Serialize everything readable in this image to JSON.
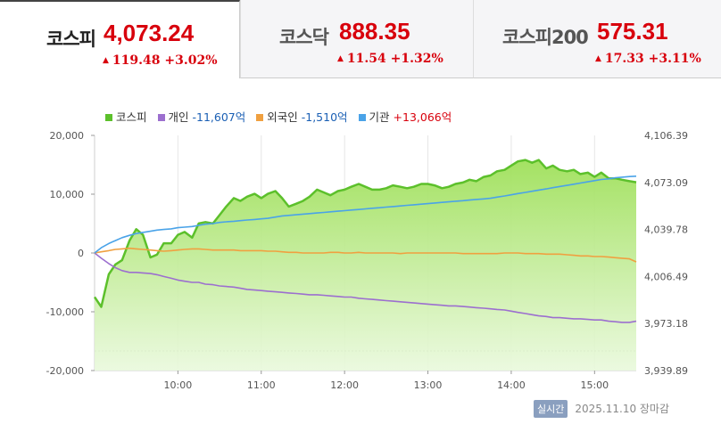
{
  "tabs": [
    {
      "name": "코스피",
      "value": "4,073.24",
      "change": "119.48 +3.02%",
      "active": true
    },
    {
      "name": "코스닥",
      "value": "888.35",
      "change": "11.54 +1.32%",
      "active": false
    },
    {
      "name": "코스피200",
      "value": "575.31",
      "change": "17.33 +3.11%",
      "active": false
    }
  ],
  "legend": [
    {
      "label": "코스피",
      "value": "",
      "color": "#5cc02b"
    },
    {
      "label": "개인",
      "value": "-11,607억",
      "color": "#9c6fcf"
    },
    {
      "label": "외국인",
      "value": "-1,510억",
      "color": "#f0a040"
    },
    {
      "label": "기관",
      "value": "+13,066억",
      "color": "#4aa3e8"
    }
  ],
  "footer": {
    "badge": "실시간",
    "date": "2025.11.10 장마감"
  },
  "chart_data": {
    "type": "line",
    "x_ticks": [
      "10:00",
      "11:00",
      "12:00",
      "13:00",
      "14:00",
      "15:00"
    ],
    "y_left_ticks": [
      "20,000",
      "10,000",
      "0",
      "-10,000",
      "-20,000"
    ],
    "y_left_range": [
      -20000,
      20000
    ],
    "y_right_ticks": [
      "4,106.39",
      "4,073.09",
      "4,039.78",
      "4,006.49",
      "3,973.18",
      "3,939.89"
    ],
    "y_right_range": [
      3939.89,
      4106.39
    ],
    "x_range_hours": [
      9.0,
      15.5
    ],
    "x_hours": [
      9.0,
      9.08,
      9.17,
      9.25,
      9.33,
      9.42,
      9.5,
      9.58,
      9.67,
      9.75,
      9.83,
      9.92,
      10.0,
      10.08,
      10.17,
      10.25,
      10.33,
      10.42,
      10.5,
      10.58,
      10.67,
      10.75,
      10.83,
      10.92,
      11.0,
      11.08,
      11.17,
      11.25,
      11.33,
      11.42,
      11.5,
      11.58,
      11.67,
      11.75,
      11.83,
      11.92,
      12.0,
      12.08,
      12.17,
      12.25,
      12.33,
      12.42,
      12.5,
      12.58,
      12.67,
      12.75,
      12.83,
      12.92,
      13.0,
      13.08,
      13.17,
      13.25,
      13.33,
      13.42,
      13.5,
      13.58,
      13.67,
      13.75,
      13.83,
      13.92,
      14.0,
      14.08,
      14.17,
      14.25,
      14.33,
      14.42,
      14.5,
      14.58,
      14.67,
      14.75,
      14.83,
      14.92,
      15.0,
      15.08,
      15.17,
      15.25,
      15.33,
      15.42,
      15.5
    ],
    "series": [
      {
        "name": "코스피",
        "axis": "right",
        "color": "#5cc02b",
        "fill": true,
        "values": [
          3992,
          3985,
          4008,
          4015,
          4018,
          4032,
          4040,
          4036,
          4020,
          4022,
          4030,
          4030,
          4036,
          4038,
          4034,
          4044,
          4045,
          4044,
          4050,
          4056,
          4062,
          4060,
          4063,
          4065,
          4062,
          4065,
          4067,
          4062,
          4056,
          4058,
          4060,
          4063,
          4068,
          4066,
          4064,
          4067,
          4068,
          4070,
          4072,
          4070,
          4068,
          4068,
          4069,
          4071,
          4070,
          4069,
          4070,
          4072,
          4072,
          4071,
          4069,
          4070,
          4072,
          4073,
          4075,
          4074,
          4077,
          4078,
          4081,
          4082,
          4085,
          4088,
          4089,
          4087,
          4089,
          4083,
          4085,
          4082,
          4081,
          4082,
          4079,
          4080,
          4077,
          4080,
          4076,
          4076,
          4075,
          4074,
          4073.24
        ]
      },
      {
        "name": "개인",
        "axis": "left",
        "color": "#9c6fcf",
        "values": [
          0,
          -900,
          -1800,
          -2500,
          -3000,
          -3300,
          -3300,
          -3400,
          -3500,
          -3700,
          -4000,
          -4300,
          -4600,
          -4800,
          -5000,
          -5000,
          -5300,
          -5400,
          -5600,
          -5700,
          -5800,
          -6000,
          -6200,
          -6300,
          -6400,
          -6500,
          -6600,
          -6700,
          -6800,
          -6900,
          -7000,
          -7100,
          -7100,
          -7200,
          -7300,
          -7400,
          -7500,
          -7500,
          -7700,
          -7800,
          -7900,
          -8000,
          -8100,
          -8200,
          -8300,
          -8400,
          -8500,
          -8600,
          -8700,
          -8800,
          -8900,
          -9000,
          -9000,
          -9100,
          -9200,
          -9300,
          -9400,
          -9500,
          -9600,
          -9700,
          -9900,
          -10100,
          -10300,
          -10500,
          -10700,
          -10800,
          -11000,
          -11000,
          -11100,
          -11200,
          -11200,
          -11300,
          -11400,
          -11400,
          -11600,
          -11700,
          -11800,
          -11800,
          -11607
        ]
      },
      {
        "name": "외국인",
        "axis": "left",
        "color": "#f0a040",
        "values": [
          0,
          200,
          400,
          600,
          700,
          800,
          700,
          600,
          500,
          400,
          300,
          400,
          500,
          600,
          700,
          700,
          600,
          500,
          500,
          500,
          500,
          400,
          400,
          400,
          400,
          300,
          300,
          200,
          100,
          100,
          0,
          0,
          0,
          0,
          100,
          100,
          0,
          0,
          100,
          0,
          0,
          0,
          0,
          0,
          -100,
          0,
          0,
          0,
          0,
          0,
          0,
          0,
          0,
          -100,
          -100,
          -100,
          -100,
          -100,
          -100,
          0,
          0,
          0,
          -100,
          -100,
          -100,
          -200,
          -200,
          -200,
          -300,
          -400,
          -500,
          -500,
          -600,
          -600,
          -700,
          -800,
          -900,
          -1000,
          -1510
        ]
      },
      {
        "name": "기관",
        "axis": "left",
        "color": "#4aa3e8",
        "values": [
          0,
          900,
          1600,
          2100,
          2600,
          3000,
          3300,
          3500,
          3700,
          3900,
          4000,
          4100,
          4300,
          4400,
          4500,
          4700,
          4900,
          5000,
          5200,
          5300,
          5400,
          5500,
          5600,
          5700,
          5800,
          5900,
          6100,
          6300,
          6400,
          6500,
          6600,
          6700,
          6800,
          6900,
          7000,
          7100,
          7200,
          7300,
          7400,
          7500,
          7600,
          7700,
          7800,
          7900,
          8000,
          8100,
          8200,
          8300,
          8400,
          8500,
          8600,
          8700,
          8800,
          8900,
          9000,
          9100,
          9200,
          9300,
          9500,
          9700,
          9900,
          10100,
          10300,
          10500,
          10700,
          10900,
          11100,
          11300,
          11500,
          11700,
          11900,
          12100,
          12300,
          12500,
          12600,
          12800,
          12900,
          13000,
          13066
        ]
      }
    ]
  }
}
